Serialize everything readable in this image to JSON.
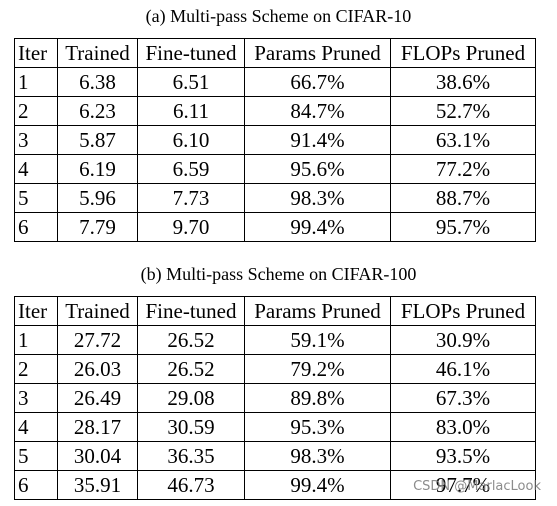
{
  "tables": [
    {
      "caption": "(a)  Multi-pass Scheme on CIFAR-10",
      "header": [
        "Iter",
        "Trained",
        "Fine-tuned",
        "Params Pruned",
        "FLOPs Pruned"
      ],
      "rows": [
        [
          "1",
          "6.38",
          "6.51",
          "66.7%",
          "38.6%"
        ],
        [
          "2",
          "6.23",
          "6.11",
          "84.7%",
          "52.7%"
        ],
        [
          "3",
          "5.87",
          "6.10",
          "91.4%",
          "63.1%"
        ],
        [
          "4",
          "6.19",
          "6.59",
          "95.6%",
          "77.2%"
        ],
        [
          "5",
          "5.96",
          "7.73",
          "98.3%",
          "88.7%"
        ],
        [
          "6",
          "7.79",
          "9.70",
          "99.4%",
          "95.7%"
        ]
      ]
    },
    {
      "caption": "(b)  Multi-pass Scheme on CIFAR-100",
      "header": [
        "Iter",
        "Trained",
        "Fine-tuned",
        "Params Pruned",
        "FLOPs Pruned"
      ],
      "rows": [
        [
          "1",
          "27.72",
          "26.52",
          "59.1%",
          "30.9%"
        ],
        [
          "2",
          "26.03",
          "26.52",
          "79.2%",
          "46.1%"
        ],
        [
          "3",
          "26.49",
          "29.08",
          "89.8%",
          "67.3%"
        ],
        [
          "4",
          "28.17",
          "30.59",
          "95.3%",
          "83.0%"
        ],
        [
          "5",
          "30.04",
          "36.35",
          "98.3%",
          "93.5%"
        ],
        [
          "6",
          "35.91",
          "46.73",
          "99.4%",
          "97.7%"
        ]
      ]
    }
  ],
  "watermark": "CSDN @MarlacLook"
}
